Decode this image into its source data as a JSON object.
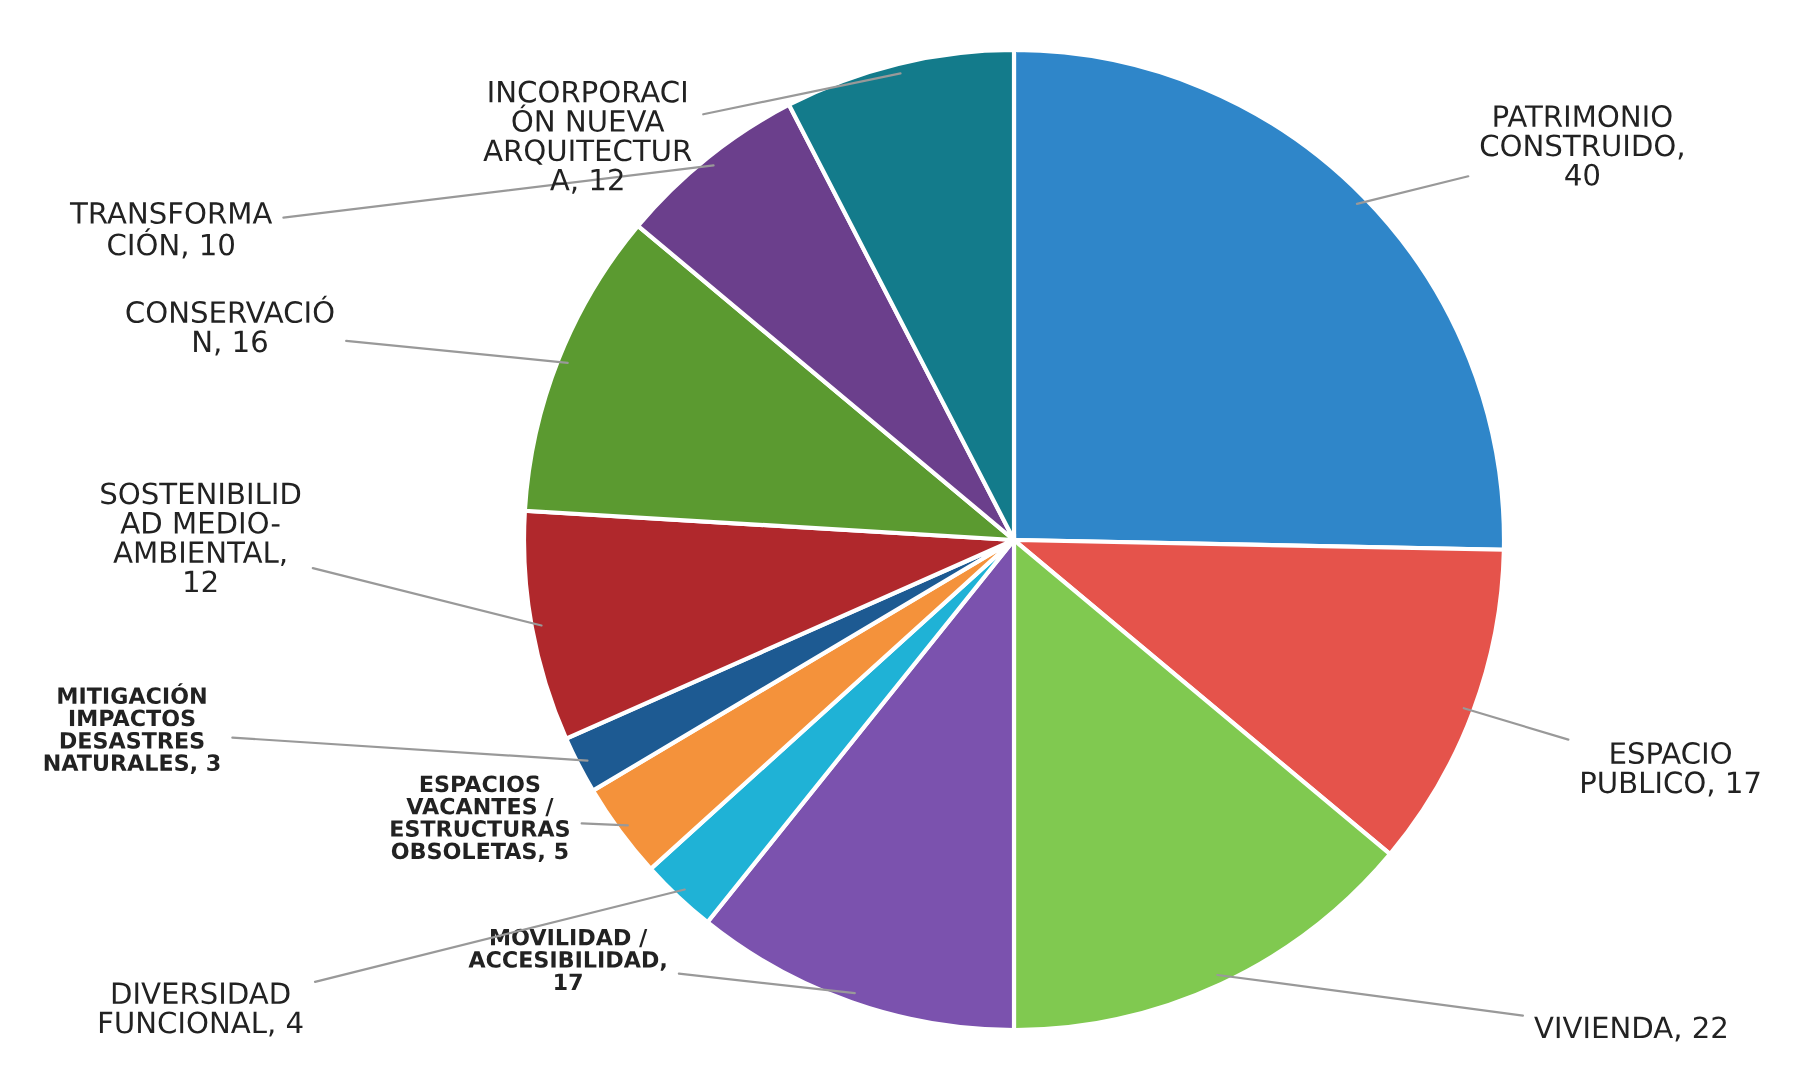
{
  "chart_data": {
    "type": "pie",
    "categories": [
      "PATRIMONIO\nCONSTRUIDO,\n40",
      "ESPACIO\nPUBLICO, 17",
      "VIVIENDA, 22",
      "MOVILIDAD /\nACCESIBILIDAD,\n17",
      "DIVERSIDAD\nFUNCIONAL, 4",
      "ESPACIOS\nVACANTES /\nESTRUCTURAS\nOBSOLETAS, 5",
      "MITIGACIÓN\nIMPACTOS\nDESASTRES\nNATURALES, 3",
      "SOSTENIBILID\nAD MEDIO-\nAMBIENTAL,\n12",
      "CONSERVACIÓ\nN, 16",
      "TRANSFORMA\nCIÓN, 10",
      "INCORPORACI\nÓN NUEVA\nARQUITECTUR\nA, 12"
    ],
    "values": [
      40,
      17,
      22,
      17,
      4,
      5,
      3,
      12,
      16,
      10,
      12
    ],
    "colors": [
      "#2f86c9",
      "#e5534b",
      "#80c950",
      "#7b52ae",
      "#1fb2d6",
      "#f4923b",
      "#1d5a92",
      "#b0282c",
      "#5b9a30",
      "#6b3f8c",
      "#137b8b"
    ]
  }
}
